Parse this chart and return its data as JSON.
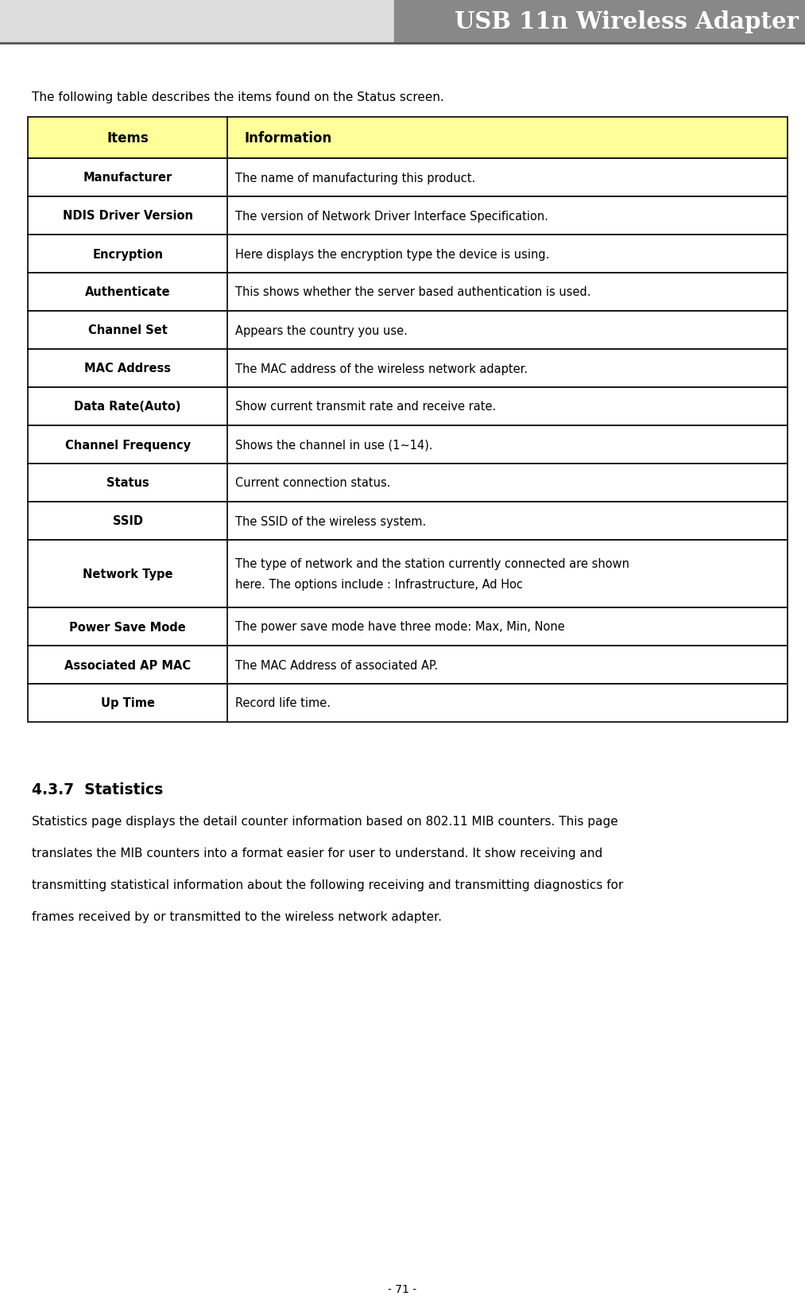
{
  "page_title": "USB 11n Wireless Adapter",
  "header_gray_color": "#888888",
  "header_text_color": "#ffffff",
  "intro_text": "The following table describes the items found on the Status screen.",
  "table_header_bg": "#ffff99",
  "table_header_items": "Items",
  "table_header_info": "Information",
  "table_rows": [
    [
      "Manufacturer",
      "The name of manufacturing this product."
    ],
    [
      "NDIS Driver Version",
      "The version of Network Driver Interface Specification."
    ],
    [
      "Encryption",
      "Here displays the encryption type the device is using."
    ],
    [
      "Authenticate",
      "This shows whether the server based authentication is used."
    ],
    [
      "Channel Set",
      "Appears the country you use."
    ],
    [
      "MAC Address",
      "The MAC address of the wireless network adapter."
    ],
    [
      "Data Rate(Auto)",
      "Show current transmit rate and receive rate."
    ],
    [
      "Channel Frequency",
      "Shows the channel in use (1~14)."
    ],
    [
      "Status",
      "Current connection status."
    ],
    [
      "SSID",
      "The SSID of the wireless system."
    ],
    [
      "Network Type",
      "The type of network and the station currently connected are shown here. The options include : Infrastructure, Ad Hoc"
    ],
    [
      "Power Save Mode",
      "The power save mode have three mode: Max, Min, None"
    ],
    [
      "Associated AP MAC",
      "The MAC Address of associated AP."
    ],
    [
      "Up Time",
      "Record life time."
    ]
  ],
  "network_type_line1": "The type of network and the station currently connected are shown",
  "network_type_line2": "here. The options include : Infrastructure, Ad Hoc",
  "section_title": "4.3.7  Statistics",
  "body_lines": [
    "Statistics page displays the detail counter information based on 802.11 MIB counters. This page",
    "translates the MIB counters into a format easier for user to understand. It show receiving and",
    "transmitting statistical information about the following receiving and transmitting diagnostics for",
    "frames received by or transmitted to the wireless network adapter."
  ],
  "page_number": "- 71 -",
  "bg_color": "#ffffff",
  "border_color": "#000000"
}
